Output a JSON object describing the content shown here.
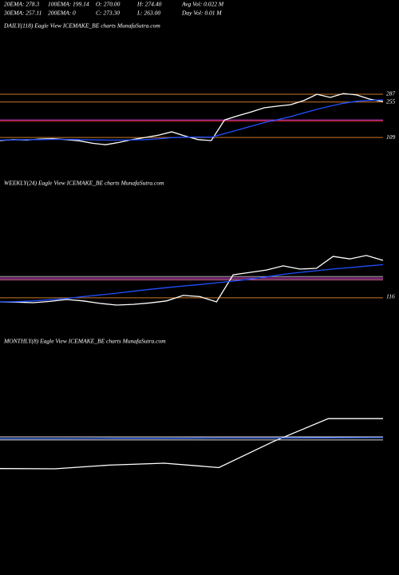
{
  "header": {
    "rows": [
      [
        "20EMA: 278.3",
        "100EMA: 199.14",
        "O: 270.00",
        "H: 274.40",
        "Avg Vol: 0.022  M"
      ],
      [
        "30EMA: 257.11",
        "200EMA: 0",
        "C: 273.30",
        "L: 263.00",
        "Day Vol: 0.01 M"
      ]
    ]
  },
  "chart_data": [
    {
      "type": "line",
      "title": "DAILY(118) Eagle  View  ICEMAKE_BE charts MunafaSutra.com",
      "ylim": [
        17,
        544
      ],
      "yticks": [
        109,
        255,
        287
      ],
      "hlines": [
        {
          "value": 287,
          "color": "#c8782a"
        },
        {
          "value": 255,
          "color": "#c8782a"
        },
        {
          "value": 181,
          "color": "#e040e0"
        },
        {
          "value": 176,
          "color": "#d02020"
        },
        {
          "value": 109,
          "color": "#c8782a"
        }
      ],
      "series": [
        {
          "color": "#ffffff",
          "values": [
            96,
            100,
            98,
            102,
            104,
            100,
            95,
            85,
            79,
            88,
            100,
            109,
            118,
            132,
            115,
            100,
            96,
            181,
            198,
            214,
            231,
            238,
            244,
            261,
            287,
            274,
            290,
            284,
            267,
            257
          ]
        },
        {
          "color": "#2050ff",
          "values": [
            98,
            99,
            100,
            100,
            101,
            101,
            100,
            99,
            98,
            98,
            99,
            100,
            103,
            108,
            110,
            111,
            110,
            125,
            140,
            155,
            170,
            182,
            195,
            210,
            225,
            238,
            250,
            258,
            262,
            264
          ]
        }
      ]
    },
    {
      "type": "line",
      "title": "WEEKLY(24) Eagle  View  ICEMAKE_BE charts MunafaSutra.com",
      "ylim": [
        40,
        552
      ],
      "yticks": [
        116
      ],
      "hlines": [
        {
          "value": 195,
          "color": "#e040e0"
        },
        {
          "value": 188,
          "color": "#ff80c0"
        },
        {
          "value": 201,
          "color": "#aaaaaa"
        },
        {
          "value": 113,
          "color": "#c8782a"
        }
      ],
      "series": [
        {
          "color": "#ffffff",
          "values": [
            96,
            95,
            93,
            98,
            106,
            100,
            90,
            83,
            86,
            92,
            100,
            123,
            118,
            96,
            208,
            218,
            228,
            245,
            232,
            235,
            284,
            274,
            288,
            268
          ]
        },
        {
          "color": "#2050ff",
          "values": [
            96,
            97,
            100,
            105,
            110,
            118,
            125,
            132,
            140,
            148,
            155,
            162,
            168,
            175,
            182,
            190,
            200,
            210,
            218,
            225,
            232,
            238,
            244,
            250
          ]
        }
      ]
    },
    {
      "type": "line",
      "title": "MONTHLY(8) Eagle  View  ICEMAKE_BE charts MunafaSutra.com",
      "ylim": [
        -80,
        580
      ],
      "hlines": [
        {
          "value": 227,
          "color": "#dddddd"
        },
        {
          "value": 214,
          "color": "#dddddd"
        }
      ],
      "series": [
        {
          "color": "#ffffff",
          "values": [
            96,
            95,
            110,
            118,
            100,
            208,
            302,
            302
          ]
        },
        {
          "color": "#4070ff",
          "values": [
            220,
            220,
            221,
            221,
            222,
            222,
            223,
            224
          ]
        }
      ]
    }
  ]
}
